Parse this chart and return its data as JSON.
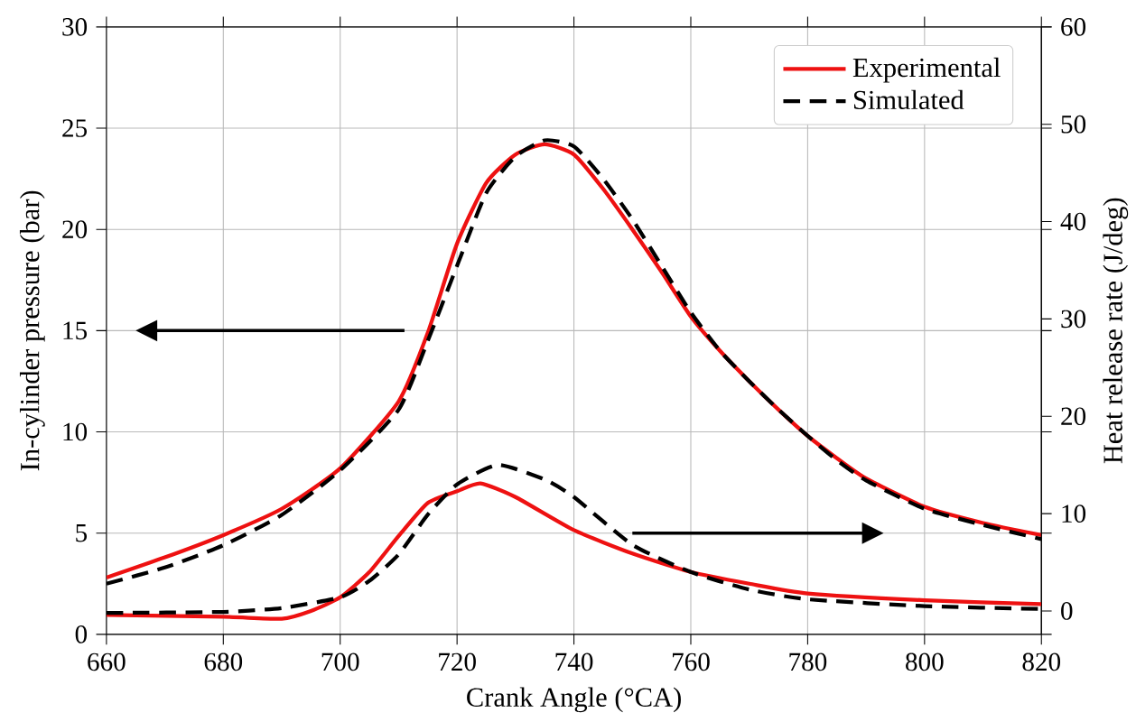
{
  "chart_data": {
    "type": "line",
    "xlabel": "Crank Angle (°CA)",
    "ylabel": "In-cylinder pressure (bar)",
    "y2label": "Heat release rate (J/deg)",
    "xlim": [
      660,
      820
    ],
    "xticks": [
      660,
      680,
      700,
      720,
      740,
      760,
      780,
      800,
      820
    ],
    "ylim": [
      0,
      30
    ],
    "yticks": [
      0,
      5,
      10,
      15,
      20,
      25,
      30
    ],
    "y2lim": [
      -2.4,
      60
    ],
    "y2ticks": [
      0,
      10,
      20,
      30,
      40,
      50,
      60
    ],
    "grid": true,
    "legend": "top right",
    "marker": "none",
    "series": [
      {
        "name": "Experimental",
        "color": "#ee1111",
        "line_style": "solid",
        "x": [
          660,
          670,
          680,
          690,
          700,
          710,
          715,
          720,
          725,
          730,
          735,
          740,
          745,
          750,
          755,
          760,
          765,
          770,
          775,
          780,
          785,
          790,
          800,
          810,
          820
        ],
        "values": [
          2.8,
          3.8,
          4.9,
          6.2,
          8.2,
          11.5,
          14.9,
          19.3,
          22.3,
          23.7,
          24.2,
          23.7,
          22.0,
          20.0,
          17.9,
          15.7,
          14.0,
          12.5,
          11.1,
          9.8,
          8.7,
          7.7,
          6.3,
          5.5,
          4.9
        ]
      },
      {
        "name": "Simulated",
        "color": "#000000",
        "line_style": "dashed",
        "x": [
          660,
          670,
          680,
          690,
          700,
          710,
          715,
          720,
          725,
          730,
          735,
          740,
          745,
          750,
          755,
          760,
          765,
          770,
          775,
          780,
          785,
          790,
          800,
          810,
          820
        ],
        "values": [
          2.5,
          3.3,
          4.4,
          5.9,
          8.1,
          11.1,
          14.5,
          18.2,
          21.8,
          23.6,
          24.4,
          24.1,
          22.5,
          20.5,
          18.2,
          15.9,
          14.0,
          12.5,
          11.1,
          9.8,
          8.6,
          7.6,
          6.2,
          5.4,
          4.7
        ]
      },
      {
        "color": "#ee1111",
        "line_style": "solid",
        "axis": "y2",
        "x": [
          660,
          680,
          690,
          695,
          700,
          705,
          710,
          715,
          720,
          724,
          730,
          740,
          750,
          760,
          770,
          780,
          800,
          820
        ],
        "values": [
          -0.4,
          -0.6,
          -0.8,
          0,
          1.4,
          4,
          7.7,
          11.1,
          12.3,
          13.1,
          11.7,
          8.3,
          5.9,
          4,
          2.8,
          1.8,
          1.1,
          0.7
        ]
      },
      {
        "color": "#000000",
        "line_style": "dashed",
        "axis": "y2",
        "x": [
          660,
          680,
          690,
          700,
          705,
          710,
          715,
          720,
          727,
          735,
          740,
          750,
          760,
          770,
          780,
          800,
          820
        ],
        "values": [
          -0.2,
          -0.1,
          0.3,
          1.4,
          3.1,
          5.8,
          9.9,
          13,
          15,
          13.5,
          11.7,
          6.8,
          4,
          2.2,
          1.2,
          0.5,
          0.2
        ]
      }
    ]
  }
}
